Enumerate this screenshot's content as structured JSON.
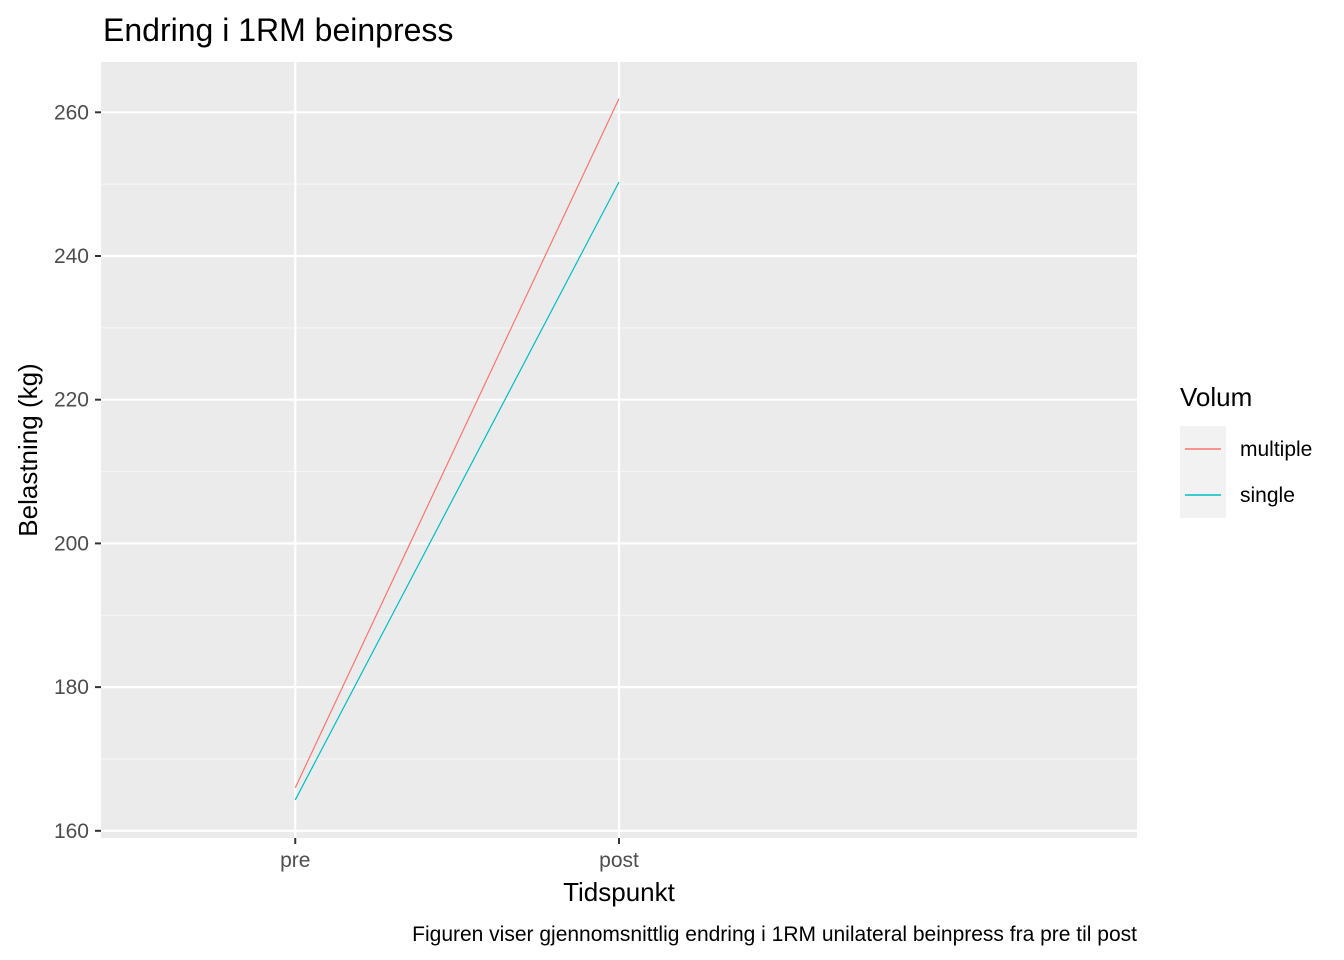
{
  "chart_data": {
    "type": "line",
    "title": "Endring i 1RM beinpress",
    "xlabel": "Tidspunkt",
    "ylabel": "Belastning (kg)",
    "caption": "Figuren viser gjennomsnittlig endring i 1RM unilateral beinpress fra pre til post",
    "categories": [
      "pre",
      "post"
    ],
    "ylim": [
      159,
      267
    ],
    "yticks": [
      160,
      180,
      200,
      220,
      240,
      260
    ],
    "grid": true,
    "legend": {
      "title": "Volum",
      "position": "right"
    },
    "series": [
      {
        "name": "multiple",
        "color": "#F8766D",
        "values": [
          166.0,
          261.9
        ]
      },
      {
        "name": "single",
        "color": "#00BFC4",
        "values": [
          164.3,
          250.3
        ]
      }
    ]
  }
}
